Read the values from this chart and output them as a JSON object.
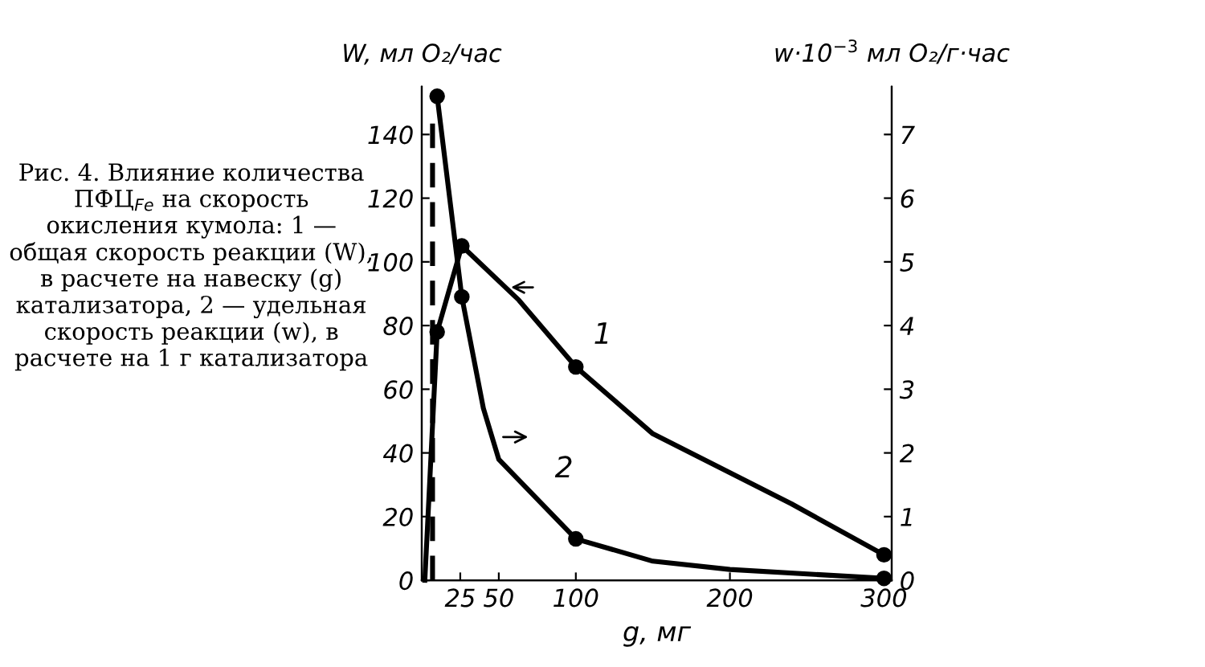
{
  "chart_data": {
    "type": "line",
    "ylabel": "W, мл O₂/час",
    "y2label": "w·10$^{−3}$ мл O₂/г·час",
    "xlabel": "g, мг",
    "xlim": [
      0,
      305
    ],
    "xticks": [
      25,
      50,
      100,
      200,
      300
    ],
    "ylim": [
      0,
      155
    ],
    "yticks": [
      0,
      20,
      40,
      60,
      80,
      100,
      120,
      140
    ],
    "y2lim": [
      0,
      7.75
    ],
    "y2ticks": [
      0,
      1,
      2,
      3,
      4,
      5,
      6,
      7
    ],
    "grid": false,
    "legend": false,
    "series": [
      {
        "color": "#000000",
        "x": [
          2,
          10,
          26,
          63,
          100,
          150,
          240,
          300
        ],
        "values": [
          0,
          78,
          105,
          88,
          67,
          46,
          24,
          8
        ]
      },
      {
        "type": "scatter",
        "color": "#000000",
        "marker": "circle",
        "x": [
          10,
          26,
          100,
          300
        ],
        "values": [
          78,
          105,
          67,
          8
        ]
      },
      {
        "axis": "y2",
        "color": "#000000",
        "x": [
          10,
          26,
          40,
          50,
          100,
          150,
          200,
          300
        ],
        "values": [
          7.6,
          4.45,
          2.7,
          1.9,
          0.65,
          0.3,
          0.17,
          0.03
        ]
      },
      {
        "type": "scatter",
        "axis": "y2",
        "color": "#000000",
        "marker": "circle",
        "x": [
          10,
          26,
          100,
          300
        ],
        "values": [
          7.6,
          4.45,
          0.65,
          0.03
        ]
      },
      {
        "axis": "y2",
        "color": "#000000",
        "line_style": "dashed",
        "x": [
          7,
          7
        ],
        "values": [
          0,
          7.2
        ]
      }
    ],
    "annotations": [
      {
        "text": "1",
        "x": 100,
        "y": 67
      },
      {
        "text": "2",
        "x": 75,
        "y": 25
      },
      "Рис. 4. Влияние количества ПФЦ$_{Fe}$ на скорость окисления кумола: 1 — общая скорость реакции (W), в расчете на навеску (g) катализатора, 2 — удельная скорость реакции (w), в расчете на 1 г катализатора"
    ]
  }
}
